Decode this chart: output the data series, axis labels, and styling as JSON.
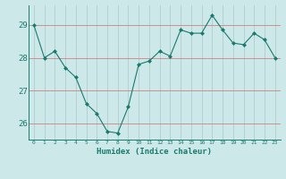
{
  "x": [
    0,
    1,
    2,
    3,
    4,
    5,
    6,
    7,
    8,
    9,
    10,
    11,
    12,
    13,
    14,
    15,
    16,
    17,
    18,
    19,
    20,
    21,
    22,
    23
  ],
  "y": [
    29.0,
    28.0,
    28.2,
    27.7,
    27.4,
    26.6,
    26.3,
    25.75,
    25.7,
    26.5,
    27.8,
    27.9,
    28.2,
    28.05,
    28.85,
    28.75,
    28.75,
    29.3,
    28.85,
    28.45,
    28.4,
    28.75,
    28.55,
    28.0
  ],
  "line_color": "#1a7a6e",
  "marker": "D",
  "marker_size": 2.0,
  "bg_color": "#cce8e8",
  "grid_color": "#b0cccc",
  "grid_h_color": "#d08080",
  "axis_label_color": "#1a7a6e",
  "tick_color": "#1a7a6e",
  "xlabel": "Humidex (Indice chaleur)",
  "ylim": [
    25.5,
    29.6
  ],
  "yticks": [
    26,
    27,
    28,
    29
  ],
  "xlim": [
    -0.5,
    23.5
  ],
  "xticks": [
    0,
    1,
    2,
    3,
    4,
    5,
    6,
    7,
    8,
    9,
    10,
    11,
    12,
    13,
    14,
    15,
    16,
    17,
    18,
    19,
    20,
    21,
    22,
    23
  ]
}
